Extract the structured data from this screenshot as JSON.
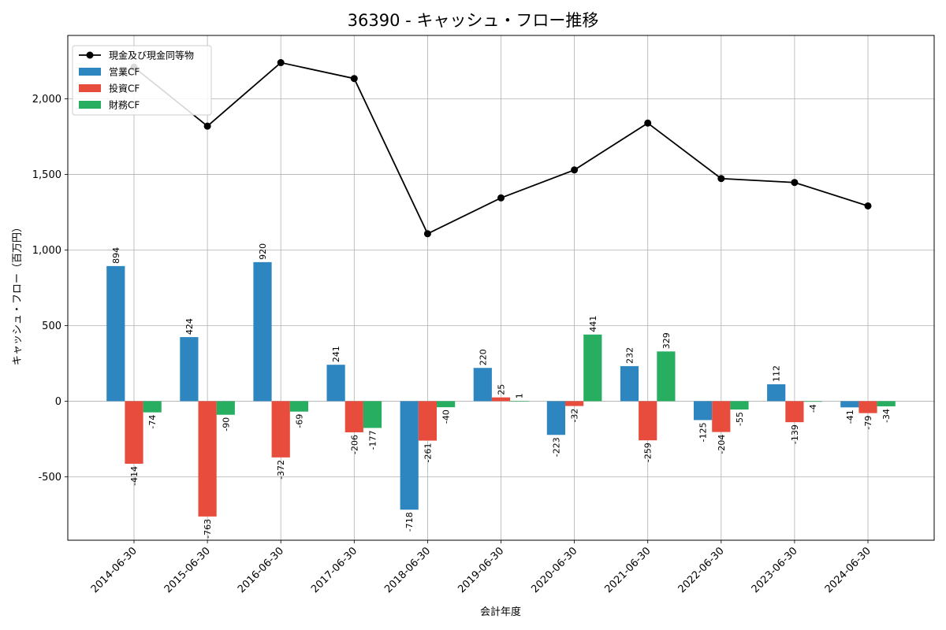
{
  "chart_data": {
    "type": "bar",
    "title": "36390 - キャッシュ・フロー推移",
    "xlabel": "会計年度",
    "ylabel": "キャッシュ・フロー（百万円）",
    "ylim": [
      -920,
      2420
    ],
    "yticks": [
      -500,
      0,
      500,
      1000,
      1500,
      2000
    ],
    "ytick_labels": [
      "-500",
      "0",
      "500",
      "1,000",
      "1,500",
      "2,000"
    ],
    "grid": true,
    "legend_position": "top-left",
    "categories": [
      "2014-06-30",
      "2015-06-30",
      "2016-06-30",
      "2017-06-30",
      "2018-06-30",
      "2019-06-30",
      "2020-06-30",
      "2021-06-30",
      "2022-06-30",
      "2023-06-30",
      "2024-06-30"
    ],
    "series": [
      {
        "name": "営業CF",
        "kind": "bar",
        "color": "#2e86c1",
        "values": [
          894,
          424,
          920,
          241,
          -718,
          220,
          -223,
          232,
          -125,
          112,
          -41
        ],
        "labels": [
          "894",
          "424",
          "920",
          "241",
          "-718",
          "220",
          "-223",
          "232",
          "-125",
          "112",
          "-41"
        ]
      },
      {
        "name": "投資CF",
        "kind": "bar",
        "color": "#e74c3c",
        "values": [
          -414,
          -763,
          -372,
          -206,
          -261,
          25,
          -32,
          -259,
          -204,
          -139,
          -79
        ],
        "labels": [
          "-414",
          "-763",
          "-372",
          "-206",
          "-261",
          "25",
          "-32",
          "-259",
          "-204",
          "-139",
          "-79"
        ]
      },
      {
        "name": "財務CF",
        "kind": "bar",
        "color": "#27ae60",
        "values": [
          -74,
          -90,
          -69,
          -177,
          -40,
          1,
          441,
          329,
          -55,
          -4,
          -34
        ],
        "labels": [
          "-74",
          "-90",
          "-69",
          "-177",
          "-40",
          "1",
          "441",
          "329",
          "-55",
          "-4",
          "-34"
        ]
      },
      {
        "name": "現金及び現金同等物",
        "kind": "line",
        "color": "#000000",
        "values": [
          2210,
          1820,
          2240,
          2135,
          1108,
          1345,
          1530,
          1840,
          1473,
          1447,
          1292
        ]
      }
    ]
  }
}
